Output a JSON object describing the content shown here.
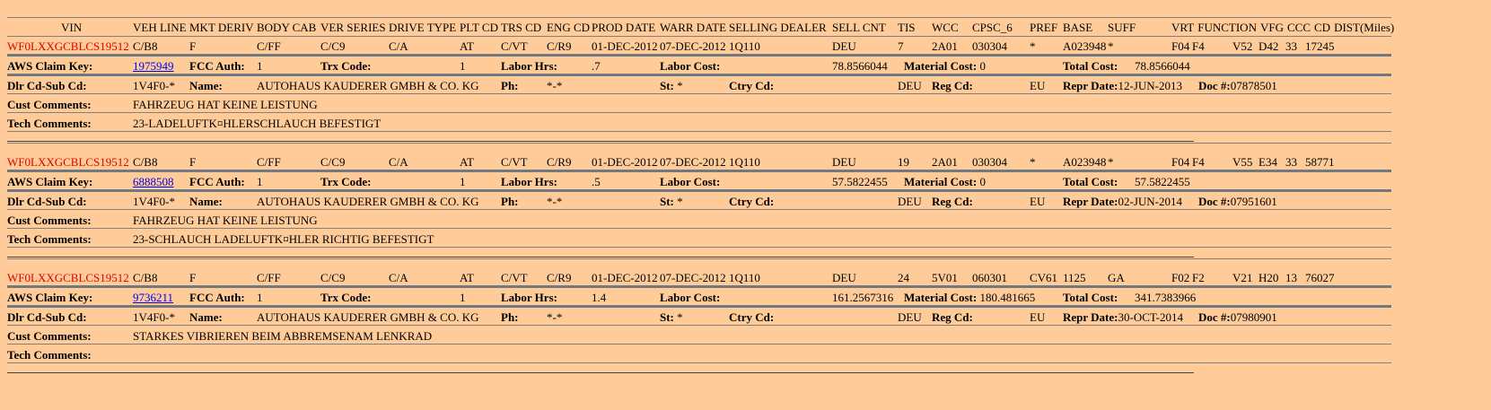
{
  "headers": [
    "VIN",
    "VEH LINE",
    "MKT DERIV",
    "BODY CAB",
    "VER SERIES",
    "DRIVE TYPE",
    "PLT CD",
    "TRS CD",
    "ENG CD",
    "PROD DATE",
    "WARR DATE",
    "SELLING DEALER",
    "SELL CNT",
    "TIS",
    "WCC",
    "CPSC_6",
    "PREF",
    "BASE",
    "SUFF",
    "VRT",
    "FUNCTION",
    "VFG",
    "CCC",
    "CD",
    "DIST(Miles)"
  ],
  "labels": {
    "claim_key": "AWS Claim Key:",
    "fcc_auth": "FCC Auth:",
    "trx_code": "Trx Code:",
    "labor_hrs": "Labor Hrs:",
    "labor_cost": "Labor Cost:",
    "material_cost": "Material Cost:",
    "total_cost": "Total Cost:",
    "dlr": "Dlr Cd-Sub Cd:",
    "name": "Name:",
    "ph": "Ph:",
    "st": "St:",
    "ctry": "Ctry Cd:",
    "reg": "Reg Cd:",
    "repr": "Repr Date:",
    "doc": "Doc #:",
    "cust": "Cust Comments:",
    "tech": "Tech Comments:"
  },
  "records": [
    {
      "vals": [
        "WF0LXXGCBLCS19512",
        "C/B8",
        "F",
        "C/FF",
        "C/C9",
        "C/A",
        "AT",
        "C/VT",
        "C/R9",
        "01-DEC-2012",
        "07-DEC-2012",
        "1Q110",
        "DEU",
        "7",
        "2A01",
        "030304",
        "*",
        "A023948",
        "*",
        "F04",
        "F4",
        "V52",
        "D42",
        "33",
        "17245"
      ],
      "claim_key": "1975949",
      "fcc_auth": "1",
      "trx_code": "1",
      "labor_hrs": ".7",
      "labor_cost": "78.8566044",
      "material_cost": "0",
      "total_cost": "78.8566044",
      "dlr": "1V4F0-*",
      "name": "AUTOHAUS KAUDERER GMBH & CO. KG",
      "ph": "*-*",
      "st": "*",
      "ctry": "DEU",
      "reg": "EU",
      "repr": "12-JUN-2013",
      "doc": "07878501",
      "cust": "FAHRZEUG HAT KEINE LEISTUNG",
      "tech": "23-LADELUFTK¤HLERSCHLAUCH BEFESTIGT"
    },
    {
      "vals": [
        "WF0LXXGCBLCS19512",
        "C/B8",
        "F",
        "C/FF",
        "C/C9",
        "C/A",
        "AT",
        "C/VT",
        "C/R9",
        "01-DEC-2012",
        "07-DEC-2012",
        "1Q110",
        "DEU",
        "19",
        "2A01",
        "030304",
        "*",
        "A023948",
        "*",
        "F04",
        "F4",
        "V55",
        "E34",
        "33",
        "58771"
      ],
      "claim_key": "6888508",
      "fcc_auth": "1",
      "trx_code": "1",
      "labor_hrs": ".5",
      "labor_cost": "57.5822455",
      "material_cost": "0",
      "total_cost": "57.5822455",
      "dlr": "1V4F0-*",
      "name": "AUTOHAUS KAUDERER GMBH & CO. KG",
      "ph": "*-*",
      "st": "*",
      "ctry": "DEU",
      "reg": "EU",
      "repr": "02-JUN-2014",
      "doc": "07951601",
      "cust": "FAHRZEUG HAT KEINE LEISTUNG",
      "tech": "23-SCHLAUCH LADELUFTK¤HLER RICHTIG BEFESTIGT"
    },
    {
      "vals": [
        "WF0LXXGCBLCS19512",
        "C/B8",
        "F",
        "C/FF",
        "C/C9",
        "C/A",
        "AT",
        "C/VT",
        "C/R9",
        "01-DEC-2012",
        "07-DEC-2012",
        "1Q110",
        "DEU",
        "24",
        "5V01",
        "060301",
        "CV61",
        "1125",
        "GA",
        "F02",
        "F2",
        "V21",
        "H20",
        "13",
        "76027"
      ],
      "claim_key": "9736211",
      "fcc_auth": "1",
      "trx_code": "1",
      "labor_hrs": "1.4",
      "labor_cost": "161.2567316",
      "material_cost": "180.481665",
      "total_cost": "341.7383966",
      "dlr": "1V4F0-*",
      "name": "AUTOHAUS KAUDERER GMBH & CO. KG",
      "ph": "*-*",
      "st": "*",
      "ctry": "DEU",
      "reg": "EU",
      "repr": "30-OCT-2014",
      "doc": "07980901",
      "cust": "STARKES VIBRIEREN BEIM ABBREMSENAM LENKRAD",
      "tech": ""
    }
  ]
}
